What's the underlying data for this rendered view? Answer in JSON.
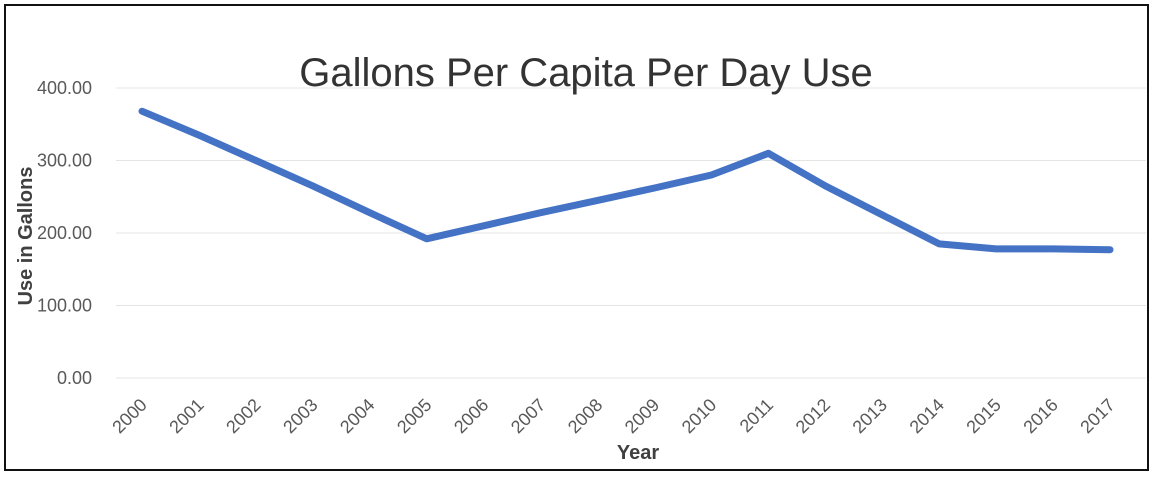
{
  "chart_data": {
    "type": "line",
    "title": "Gallons Per Capita Per Day Use",
    "xlabel": "Year",
    "ylabel": "Use in Gallons",
    "categories": [
      "2000",
      "2001",
      "2002",
      "2003",
      "2004",
      "2005",
      "2006",
      "2007",
      "2008",
      "2009",
      "2010",
      "2011",
      "2012",
      "2013",
      "2014",
      "2015",
      "2016",
      "2017"
    ],
    "series": [
      {
        "name": "",
        "color": "#4472C4",
        "values": [
          368,
          335,
          300,
          265,
          228,
          192,
          210,
          228,
          245,
          262,
          280,
          310,
          265,
          225,
          185,
          178,
          178,
          177
        ]
      }
    ],
    "y_ticks": [
      "0.00",
      "100.00",
      "200.00",
      "300.00",
      "400.00"
    ],
    "ylim": [
      0,
      400
    ],
    "grid": true,
    "legend": "none"
  }
}
